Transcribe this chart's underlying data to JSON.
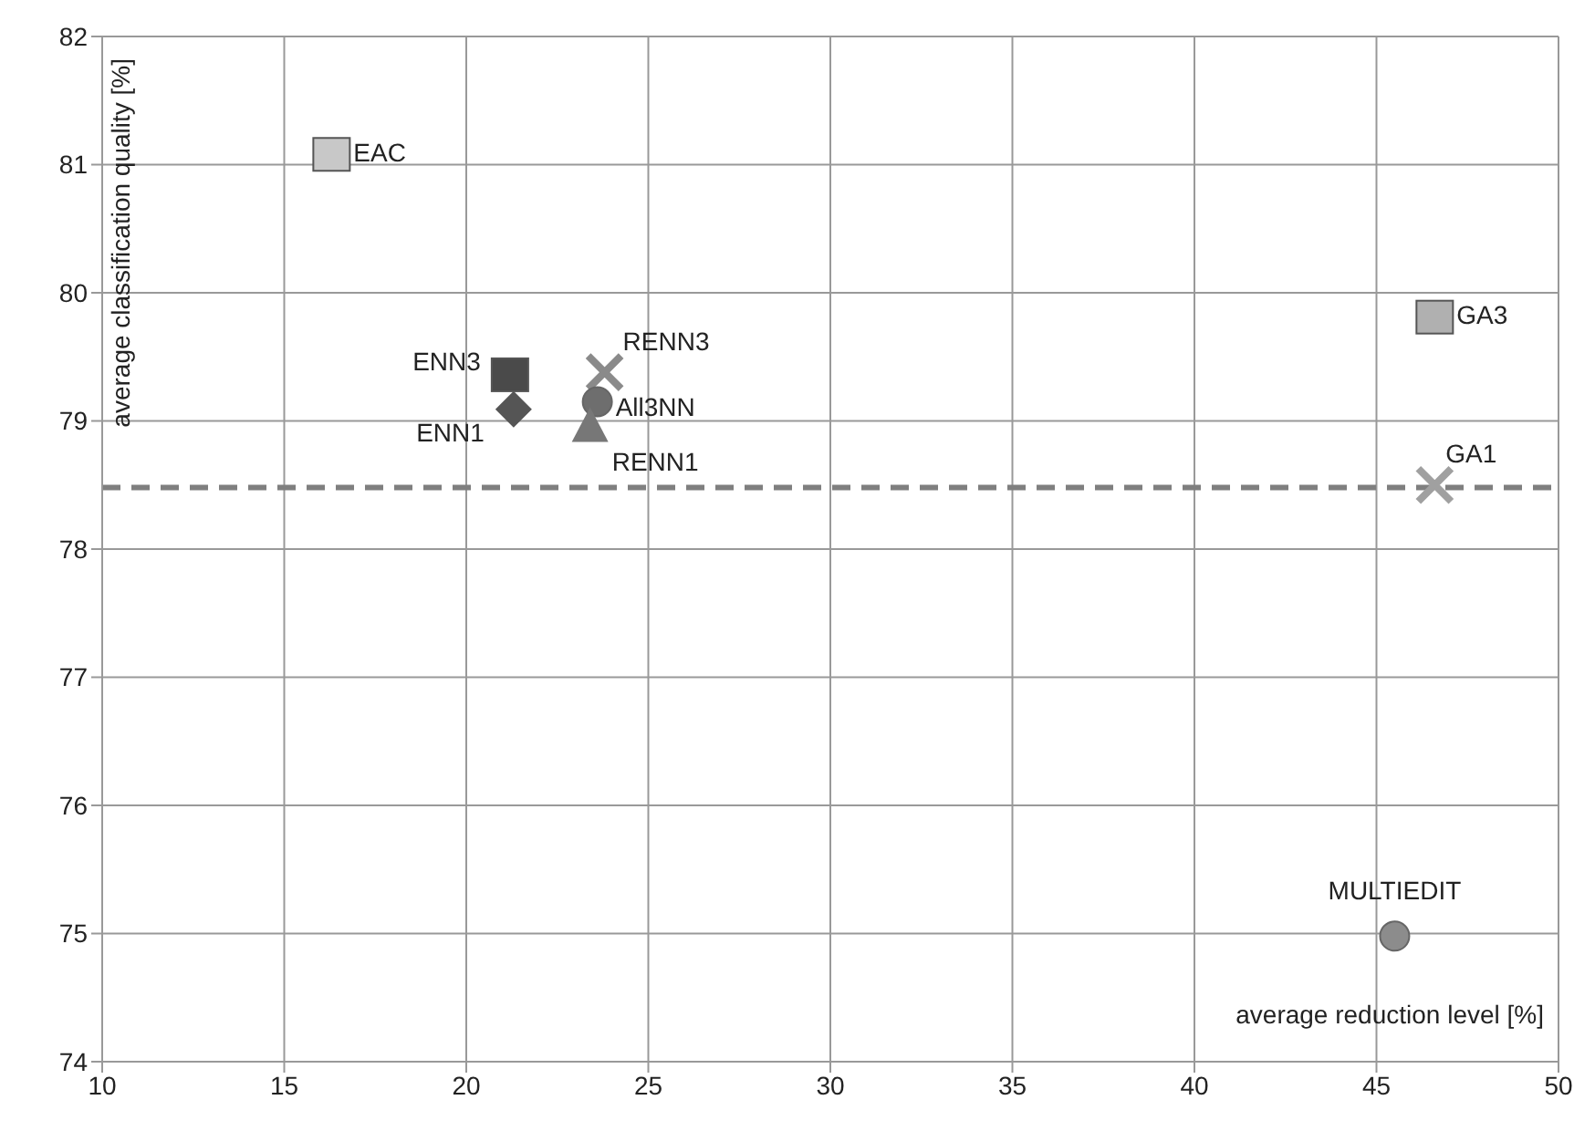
{
  "chart_data": {
    "type": "scatter",
    "xlabel": "average reduction level [%]",
    "ylabel": "average classification quality [%]",
    "xlim": [
      10,
      50
    ],
    "xticks": [
      10,
      15,
      20,
      25,
      30,
      35,
      40,
      45,
      50
    ],
    "ylim": [
      74,
      82
    ],
    "yticks": [
      74,
      75,
      76,
      77,
      78,
      79,
      80,
      81,
      82
    ],
    "grid": true,
    "ref_lines": [
      {
        "axis": "y",
        "value": 78.48,
        "color": "#7f7f7f",
        "line_style": "dashed"
      }
    ],
    "series": [
      {
        "name": "EAC",
        "color": "#c8c8c8",
        "marker": "square",
        "x": [
          16.3
        ],
        "values": [
          81.08
        ]
      },
      {
        "name": "ENN3",
        "color": "#4a4a4a",
        "marker": "square",
        "x": [
          21.2
        ],
        "values": [
          79.36
        ]
      },
      {
        "name": "ENN1",
        "color": "#555555",
        "marker": "diamond",
        "x": [
          21.3
        ],
        "values": [
          79.09
        ]
      },
      {
        "name": "RENN3",
        "color": "#8a8a8a",
        "marker": "cross",
        "x": [
          23.8
        ],
        "values": [
          79.38
        ]
      },
      {
        "name": "All3NN",
        "color": "#6e6e6e",
        "marker": "circle",
        "x": [
          23.6
        ],
        "values": [
          79.15
        ]
      },
      {
        "name": "RENN1",
        "color": "#777777",
        "marker": "triangle",
        "x": [
          23.4
        ],
        "values": [
          78.95
        ]
      },
      {
        "name": "GA3",
        "color": "#b0b0b0",
        "marker": "square",
        "x": [
          46.6
        ],
        "values": [
          79.81
        ]
      },
      {
        "name": "GA1",
        "color": "#a0a0a0",
        "marker": "cross",
        "x": [
          46.6
        ],
        "values": [
          78.5
        ]
      },
      {
        "name": "MULTIEDIT",
        "color": "#8c8c8c",
        "marker": "circle",
        "x": [
          45.5
        ],
        "values": [
          74.98
        ]
      }
    ]
  }
}
